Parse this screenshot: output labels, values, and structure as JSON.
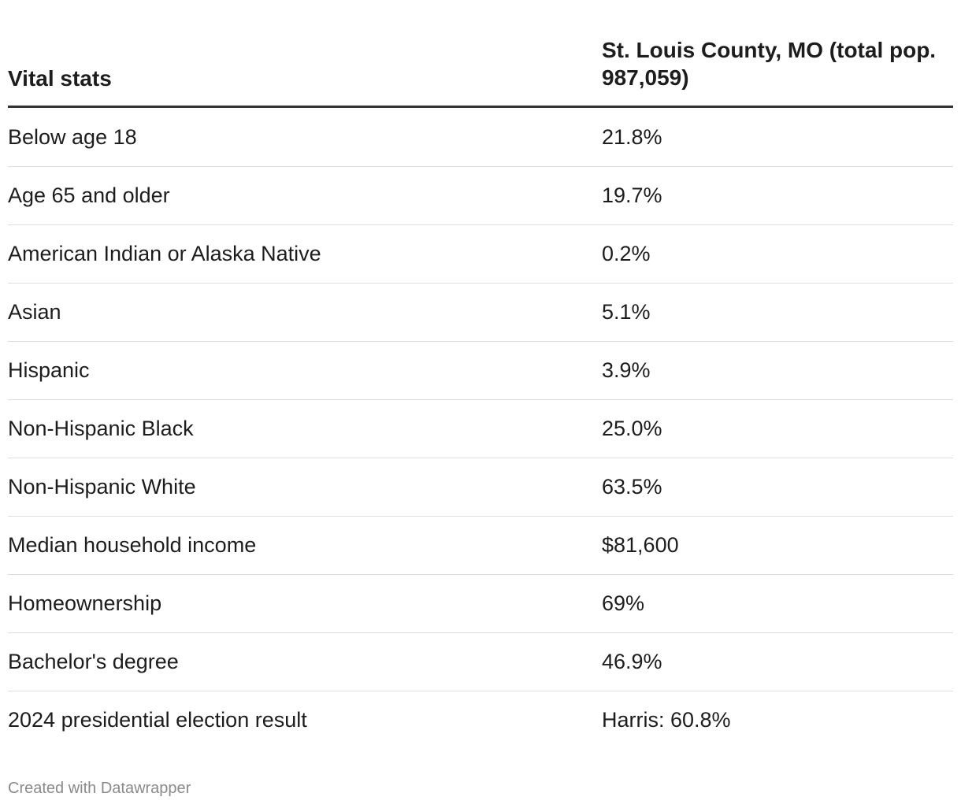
{
  "table": {
    "header": [
      "Vital stats",
      "St. Louis County, MO (total pop. 987,059)"
    ],
    "rows": [
      [
        "Below age 18",
        "21.8%"
      ],
      [
        "Age 65 and older",
        "19.7%"
      ],
      [
        "American Indian or Alaska Native",
        "0.2%"
      ],
      [
        "Asian",
        "5.1%"
      ],
      [
        "Hispanic",
        "3.9%"
      ],
      [
        "Non-Hispanic Black",
        "25.0%"
      ],
      [
        "Non-Hispanic White",
        "63.5%"
      ],
      [
        "Median household income",
        "$81,600"
      ],
      [
        "Homeownership",
        "69%"
      ],
      [
        "Bachelor's degree",
        "46.9%"
      ],
      [
        "2024 presidential election result",
        "Harris: 60.8%"
      ]
    ]
  },
  "footer": "Created with Datawrapper"
}
